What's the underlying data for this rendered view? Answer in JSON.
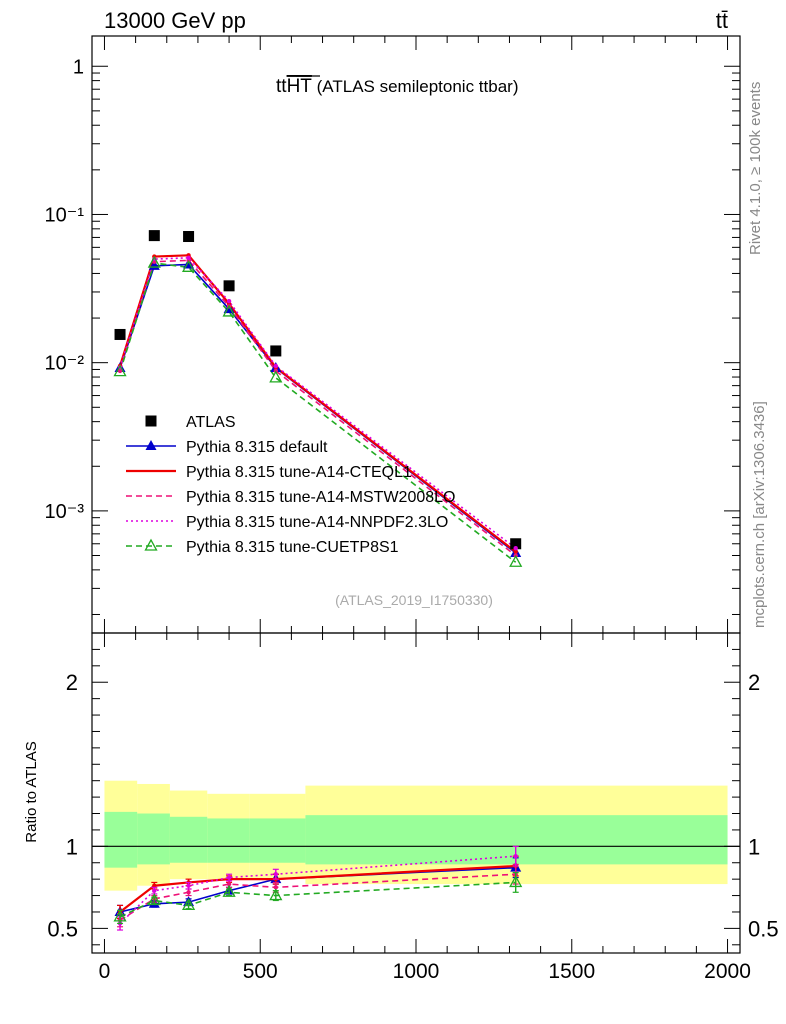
{
  "header": {
    "energy_label": "13000 GeV pp",
    "process_label": "tt̄"
  },
  "side_labels": {
    "rivet": "Rivet 4.1.0, ≥ 100k events",
    "mcplots": "mcplots.cern.ch [arXiv:1306.3436]"
  },
  "chart_data": [
    {
      "type": "line",
      "panel": "main",
      "title": "ttHT (ATLAS semileptonic ttbar)",
      "title_main": "tt",
      "title_overline": "HT",
      "title_rest": " (ATLAS semileptonic ttbar)",
      "analysis_id": "(ATLAS_2019_I1750330)",
      "yscale": "log",
      "ylim": [
        0.00015,
        1.6
      ],
      "xlim": [
        -40,
        2040
      ],
      "yticks": [
        {
          "value": 1,
          "label": "1"
        },
        {
          "value": 0.1,
          "label": "10⁻¹"
        },
        {
          "value": 0.01,
          "label": "10⁻²"
        },
        {
          "value": 0.001,
          "label": "10⁻³"
        }
      ],
      "x": [
        50,
        160,
        270,
        400,
        550,
        1320
      ],
      "series": [
        {
          "name": "ATLAS",
          "style": "data",
          "color": "#000000",
          "values": [
            0.0155,
            0.072,
            0.071,
            0.033,
            0.012,
            0.0006
          ]
        },
        {
          "name": "Pythia 8.315 default",
          "style": "solid-triangle",
          "color": "#0000cc",
          "values": [
            0.0092,
            0.045,
            0.046,
            0.023,
            0.0092,
            0.00052
          ]
        },
        {
          "name": "Pythia 8.315 tune-A14-CTEQL1",
          "style": "solid",
          "color": "#ee0000",
          "values": [
            0.0095,
            0.052,
            0.053,
            0.025,
            0.0093,
            0.00053
          ]
        },
        {
          "name": "Pythia 8.315 tune-A14-MSTW2008LO",
          "style": "dashed",
          "color": "#ee1177",
          "values": [
            0.0088,
            0.048,
            0.049,
            0.024,
            0.0088,
            0.0005
          ]
        },
        {
          "name": "Pythia 8.315 tune-A14-NNPDF2.3LO",
          "style": "dotted",
          "color": "#dd00dd",
          "values": [
            0.0093,
            0.05,
            0.051,
            0.026,
            0.0095,
            0.00056
          ]
        },
        {
          "name": "Pythia 8.315 tune-CUETP8S1",
          "style": "dashed-open-triangle",
          "color": "#22aa22",
          "values": [
            0.0087,
            0.047,
            0.044,
            0.022,
            0.0079,
            0.00045
          ]
        }
      ]
    },
    {
      "type": "line",
      "panel": "ratio",
      "ylabel": "Ratio to ATLAS",
      "ylim": [
        0.35,
        2.3
      ],
      "xlim": [
        -40,
        2040
      ],
      "yticks": [
        {
          "value": 0.5,
          "label": "0.5"
        },
        {
          "value": 1,
          "label": "1"
        },
        {
          "value": 2,
          "label": "2"
        }
      ],
      "xticks": [
        {
          "value": 0,
          "label": "0"
        },
        {
          "value": 500,
          "label": "500"
        },
        {
          "value": 1000,
          "label": "1000"
        },
        {
          "value": 1500,
          "label": "1500"
        },
        {
          "value": 2000,
          "label": "2000"
        }
      ],
      "bands": {
        "edges": [
          0,
          105,
          210,
          330,
          465,
          645,
          2000
        ],
        "yellow_lo": [
          0.73,
          0.76,
          0.8,
          0.8,
          0.8,
          0.77
        ],
        "yellow_hi": [
          1.4,
          1.38,
          1.34,
          1.32,
          1.32,
          1.37
        ],
        "green_lo": [
          0.87,
          0.89,
          0.9,
          0.9,
          0.9,
          0.89
        ],
        "green_hi": [
          1.21,
          1.2,
          1.18,
          1.17,
          1.17,
          1.19
        ],
        "yellow_color": "#ffff99",
        "green_color": "#99ff99"
      },
      "x": [
        50,
        160,
        270,
        400,
        550,
        1320
      ],
      "series": [
        {
          "name": "Pythia 8.315 default",
          "style": "solid-triangle",
          "color": "#0000cc",
          "values": [
            0.6,
            0.65,
            0.66,
            0.73,
            0.8,
            0.87
          ],
          "errors": [
            0.04,
            0.02,
            0.02,
            0.02,
            0.03,
            0.06
          ]
        },
        {
          "name": "Pythia 8.315 tune-A14-CTEQL1",
          "style": "solid",
          "color": "#ee0000",
          "values": [
            0.6,
            0.76,
            0.78,
            0.8,
            0.8,
            0.88
          ],
          "errors": [
            0.04,
            0.02,
            0.02,
            0.02,
            0.03,
            0.06
          ]
        },
        {
          "name": "Pythia 8.315 tune-A14-MSTW2008LO",
          "style": "dashed",
          "color": "#ee1177",
          "values": [
            0.55,
            0.68,
            0.72,
            0.77,
            0.75,
            0.83
          ],
          "errors": [
            0.04,
            0.02,
            0.02,
            0.02,
            0.03,
            0.06
          ]
        },
        {
          "name": "Pythia 8.315 tune-A14-NNPDF2.3LO",
          "style": "dotted",
          "color": "#dd00dd",
          "values": [
            0.53,
            0.73,
            0.76,
            0.81,
            0.83,
            0.94
          ],
          "errors": [
            0.04,
            0.02,
            0.02,
            0.02,
            0.03,
            0.06
          ]
        },
        {
          "name": "Pythia 8.315 tune-CUETP8S1",
          "style": "dashed-open-triangle",
          "color": "#22aa22",
          "values": [
            0.57,
            0.67,
            0.64,
            0.72,
            0.7,
            0.78
          ],
          "errors": [
            0.04,
            0.02,
            0.02,
            0.02,
            0.03,
            0.06
          ]
        }
      ]
    }
  ]
}
